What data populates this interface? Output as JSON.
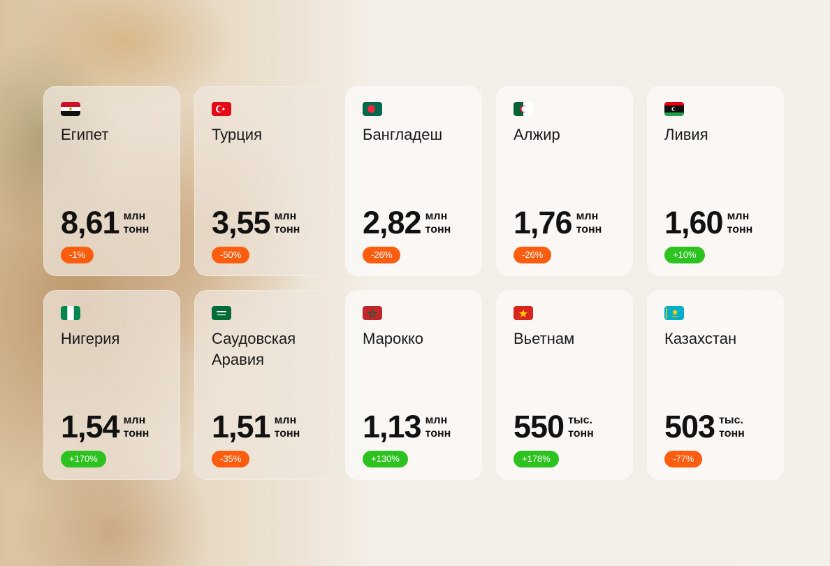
{
  "colors": {
    "negative": "#fd5d0e",
    "positive": "#2cc21f"
  },
  "cards": [
    {
      "country": "Египет",
      "flag": "egypt-flag-icon",
      "value": "8,61",
      "unit_top": "млн",
      "unit_bottom": "тонн",
      "change": "-1%",
      "trend": "neg"
    },
    {
      "country": "Турция",
      "flag": "turkey-flag-icon",
      "value": "3,55",
      "unit_top": "млн",
      "unit_bottom": "тонн",
      "change": "-50%",
      "trend": "neg"
    },
    {
      "country": "Бангладеш",
      "flag": "bangladesh-flag-icon",
      "value": "2,82",
      "unit_top": "млн",
      "unit_bottom": "тонн",
      "change": "-26%",
      "trend": "neg"
    },
    {
      "country": "Алжир",
      "flag": "algeria-flag-icon",
      "value": "1,76",
      "unit_top": "млн",
      "unit_bottom": "тонн",
      "change": "-26%",
      "trend": "neg"
    },
    {
      "country": "Ливия",
      "flag": "libya-flag-icon",
      "value": "1,60",
      "unit_top": "млн",
      "unit_bottom": "тонн",
      "change": "+10%",
      "trend": "pos"
    },
    {
      "country": "Нигерия",
      "flag": "nigeria-flag-icon",
      "value": "1,54",
      "unit_top": "млн",
      "unit_bottom": "тонн",
      "change": "+170%",
      "trend": "pos"
    },
    {
      "country": "Саудовская Аравия",
      "flag": "saudi-arabia-flag-icon",
      "value": "1,51",
      "unit_top": "млн",
      "unit_bottom": "тонн",
      "change": "-35%",
      "trend": "neg"
    },
    {
      "country": "Марокко",
      "flag": "morocco-flag-icon",
      "value": "1,13",
      "unit_top": "млн",
      "unit_bottom": "тонн",
      "change": "+130%",
      "trend": "pos"
    },
    {
      "country": "Вьетнам",
      "flag": "vietnam-flag-icon",
      "value": "550",
      "unit_top": "тыс.",
      "unit_bottom": "тонн",
      "change": "+178%",
      "trend": "pos"
    },
    {
      "country": "Казахстан",
      "flag": "kazakhstan-flag-icon",
      "value": "503",
      "unit_top": "тыс.",
      "unit_bottom": "тонн",
      "change": "-77%",
      "trend": "neg"
    }
  ]
}
